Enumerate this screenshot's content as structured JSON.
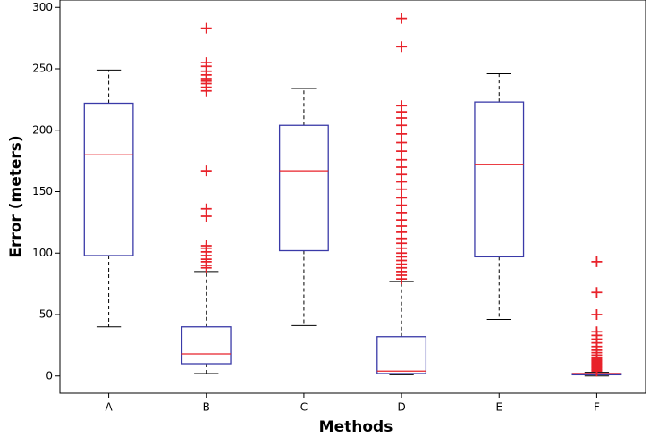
{
  "chart_data": {
    "type": "box",
    "x_label": "Methods",
    "y_label": "Error (meters)",
    "categories": [
      "A",
      "B",
      "C",
      "D",
      "E",
      "F"
    ],
    "boxes": [
      {
        "min": 40,
        "q1": 98,
        "median": 180,
        "q3": 222,
        "max": 249,
        "outliers": []
      },
      {
        "min": 2,
        "q1": 10,
        "median": 18,
        "q3": 40,
        "max": 85,
        "outliers": [
          88,
          90,
          93,
          95,
          98,
          101,
          104,
          106,
          130,
          136,
          167,
          232,
          235,
          238,
          240,
          242,
          245,
          248,
          252,
          255,
          283
        ]
      },
      {
        "min": 41,
        "q1": 102,
        "median": 167,
        "q3": 204,
        "max": 234,
        "outliers": []
      },
      {
        "min": 1,
        "q1": 2,
        "median": 4,
        "q3": 32,
        "max": 77,
        "outliers": [
          79,
          82,
          85,
          88,
          91,
          94,
          97,
          100,
          104,
          108,
          112,
          117,
          122,
          127,
          133,
          139,
          145,
          152,
          158,
          164,
          170,
          176,
          183,
          190,
          197,
          204,
          210,
          215,
          220,
          268,
          291
        ]
      },
      {
        "min": 46,
        "q1": 97,
        "median": 172,
        "q3": 223,
        "max": 246,
        "outliers": []
      },
      {
        "min": 0,
        "q1": 1,
        "median": 2,
        "q3": 2,
        "max": 3,
        "outliers": [
          4,
          5,
          6,
          7,
          8,
          9,
          10,
          11,
          12,
          13,
          14,
          15,
          17,
          19,
          21,
          24,
          27,
          30,
          33,
          36,
          50,
          68,
          93
        ]
      }
    ],
    "box_color": "#3a3aa8",
    "median_color": "#e8222a",
    "whisker_color": "#000000",
    "outlier_color": "#e8222a",
    "ylim": [
      -14,
      306
    ],
    "yticks": [
      0,
      50,
      100,
      150,
      200,
      250,
      300
    ],
    "grid": false
  }
}
